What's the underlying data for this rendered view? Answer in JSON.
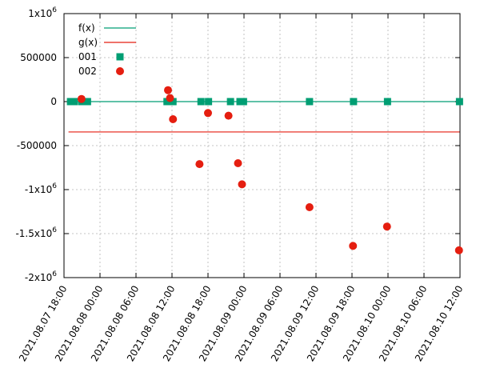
{
  "chart_data": {
    "type": "scatter",
    "title": "",
    "xlabel": "",
    "ylabel": "",
    "x_type": "datetime",
    "xlim": [
      "2021-08-07 18:00",
      "2021-08-10 12:00"
    ],
    "ylim": [
      -2000000,
      1000000
    ],
    "grid": true,
    "legend_position": "top-left",
    "x_ticks": [
      "2021.08.07 18:00",
      "2021.08.08 00:00",
      "2021.08.08 06:00",
      "2021.08.08 12:00",
      "2021.08.08 18:00",
      "2021.08.09 00:00",
      "2021.08.09 06:00",
      "2021.08.09 12:00",
      "2021.08.09 18:00",
      "2021.08.10 00:00",
      "2021.08.10 06:00",
      "2021.08.10 12:00"
    ],
    "y_ticks": [
      {
        "value": 1000000,
        "mantissa": "1x10",
        "exp": "6"
      },
      {
        "value": 500000,
        "mantissa": "500000",
        "exp": ""
      },
      {
        "value": 0,
        "mantissa": "0",
        "exp": ""
      },
      {
        "value": -500000,
        "mantissa": "-500000",
        "exp": ""
      },
      {
        "value": -1000000,
        "mantissa": "-1x10",
        "exp": "6"
      },
      {
        "value": -1500000,
        "mantissa": "-1.5x10",
        "exp": "6"
      },
      {
        "value": -2000000,
        "mantissa": "-2x10",
        "exp": "6"
      }
    ],
    "series": [
      {
        "name": "f(x)",
        "style": "line",
        "color": "#009e73",
        "points": [
          {
            "x": "2021-08-07 18:45",
            "y": 0
          },
          {
            "x": "2021-08-10 12:00",
            "y": 0
          }
        ]
      },
      {
        "name": "g(x)",
        "style": "line",
        "color": "#e51e10",
        "points": [
          {
            "x": "2021-08-07 18:45",
            "y": -345000
          },
          {
            "x": "2021-08-10 12:00",
            "y": -345000
          }
        ]
      },
      {
        "name": "001",
        "style": "square",
        "color": "#009e73",
        "points": [
          {
            "x": "2021-08-07 19:05",
            "y": 0
          },
          {
            "x": "2021-08-07 19:40",
            "y": 0
          },
          {
            "x": "2021-08-07 20:55",
            "y": 0
          },
          {
            "x": "2021-08-07 21:55",
            "y": 0
          },
          {
            "x": "2021-08-08 11:10",
            "y": 0
          },
          {
            "x": "2021-08-08 11:40",
            "y": 0
          },
          {
            "x": "2021-08-08 12:10",
            "y": 0
          },
          {
            "x": "2021-08-08 16:50",
            "y": 0
          },
          {
            "x": "2021-08-08 18:05",
            "y": 0
          },
          {
            "x": "2021-08-08 21:45",
            "y": 0
          },
          {
            "x": "2021-08-08 23:20",
            "y": 0
          },
          {
            "x": "2021-08-08 23:55",
            "y": 0
          },
          {
            "x": "2021-08-09 10:55",
            "y": 0
          },
          {
            "x": "2021-08-09 18:15",
            "y": 0
          },
          {
            "x": "2021-08-09 23:55",
            "y": 0
          },
          {
            "x": "2021-08-10 11:55",
            "y": 0
          }
        ]
      },
      {
        "name": "002",
        "style": "circle",
        "color": "#e51e10",
        "points": [
          {
            "x": "2021-08-07 20:55",
            "y": 30000
          },
          {
            "x": "2021-08-08 11:20",
            "y": 130000
          },
          {
            "x": "2021-08-08 11:40",
            "y": 40000
          },
          {
            "x": "2021-08-08 12:10",
            "y": -200000
          },
          {
            "x": "2021-08-08 16:35",
            "y": -710000
          },
          {
            "x": "2021-08-08 18:00",
            "y": -130000
          },
          {
            "x": "2021-08-08 21:25",
            "y": -160000
          },
          {
            "x": "2021-08-08 23:00",
            "y": -700000
          },
          {
            "x": "2021-08-08 23:40",
            "y": -940000
          },
          {
            "x": "2021-08-09 10:55",
            "y": -1200000
          },
          {
            "x": "2021-08-09 18:10",
            "y": -1640000
          },
          {
            "x": "2021-08-09 23:50",
            "y": -1420000
          },
          {
            "x": "2021-08-10 11:50",
            "y": -1690000
          }
        ]
      }
    ]
  }
}
